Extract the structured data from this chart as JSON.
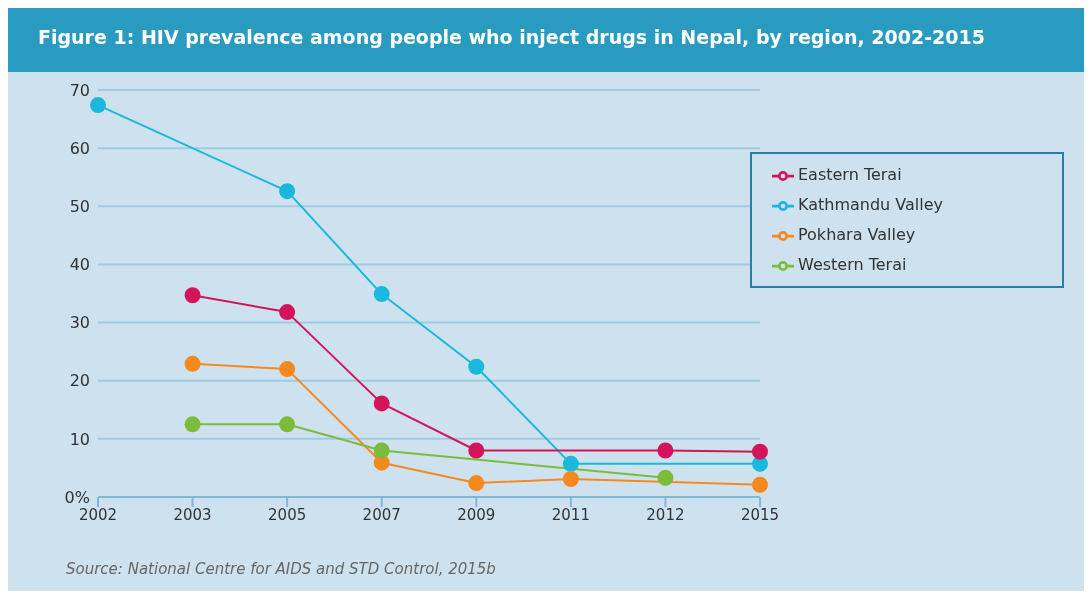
{
  "chart_data": {
    "type": "line",
    "title": "Figure 1: HIV prevalence among people who inject drugs in Nepal, by region, 2002-2015",
    "categories": [
      "2002",
      "2003",
      "2005",
      "2007",
      "2009",
      "2011",
      "2012",
      "2015"
    ],
    "series": [
      {
        "name": "Kathmandu Valley",
        "color": "#1ab8dc",
        "values": [
          67.4,
          null,
          52.6,
          34.9,
          22.4,
          5.7,
          null,
          5.7
        ]
      },
      {
        "name": "Pokhara Valley",
        "color": "#f5891f",
        "values": [
          null,
          22.9,
          22.0,
          5.9,
          2.4,
          3.1,
          null,
          2.1
        ]
      },
      {
        "name": "Western Terai",
        "color": "#7dbb3a",
        "values": [
          null,
          12.5,
          12.5,
          8.0,
          null,
          null,
          3.3,
          null
        ]
      },
      {
        "name": "Eastern Terai",
        "color": "#d4145a",
        "values": [
          null,
          34.7,
          31.8,
          16.1,
          8.0,
          null,
          8.0,
          7.8
        ]
      }
    ],
    "ylim": [
      0,
      70
    ],
    "yticks": [
      {
        "value": 0,
        "label": "0%"
      },
      10,
      20,
      30,
      40,
      50,
      60,
      70
    ],
    "grid": "y",
    "legend": "top right",
    "marker": "circle",
    "line_style": "solid",
    "annotations": [
      "Source: National Centre for AIDS and STD Control, 2015b"
    ]
  }
}
